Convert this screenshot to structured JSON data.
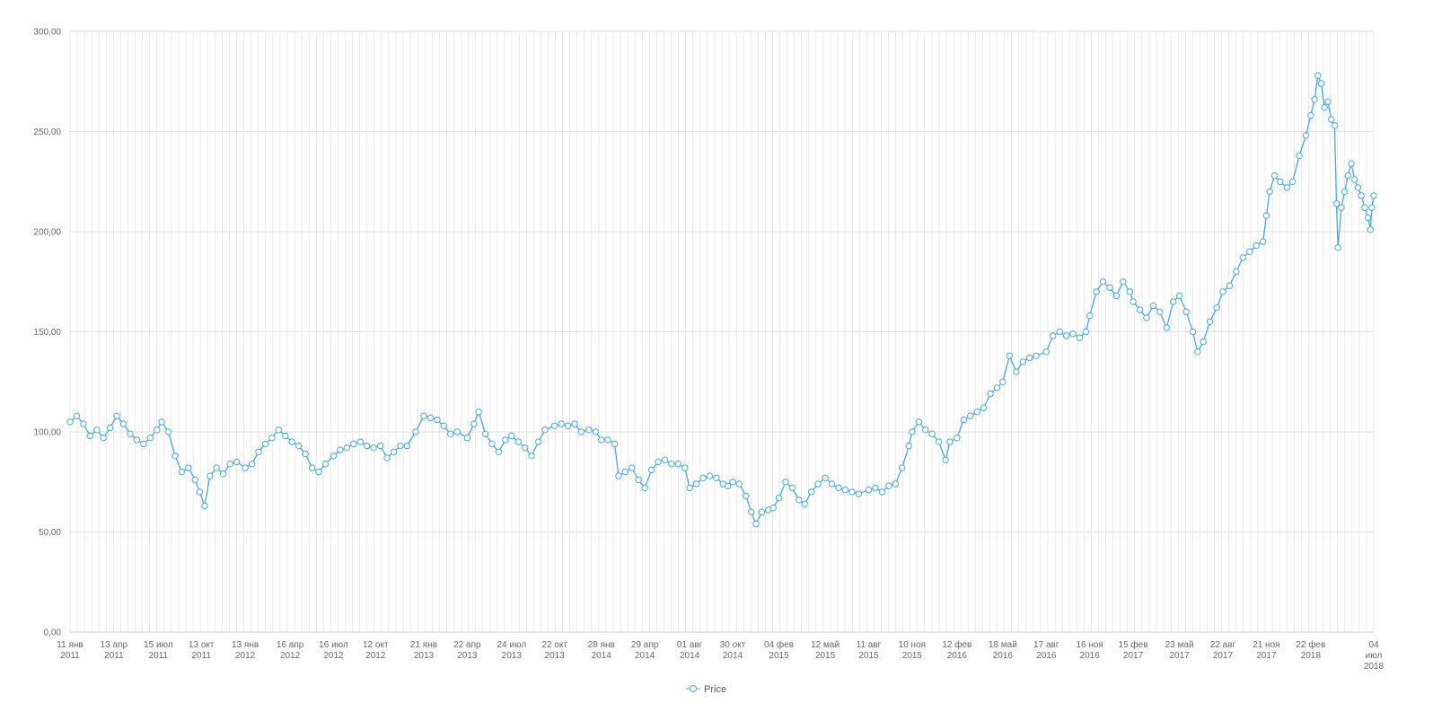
{
  "chart_data": {
    "type": "line",
    "title": "",
    "xlabel": "",
    "ylabel": "",
    "ylim": [
      0,
      300
    ],
    "xlim": [
      "2011-01-11",
      "2018-07-04"
    ],
    "grid": true,
    "marker": "hollow-circle",
    "legend_position": "bottom-center",
    "colors": {
      "series": "#4da6d6",
      "grid": "#dddddd",
      "axis_text": "#666666"
    },
    "y_ticks": [
      "0,00",
      "50,00",
      "100,00",
      "150,00",
      "200,00",
      "250,00",
      "300,00"
    ],
    "x_ticks": [
      {
        "date": "2011-01-11",
        "label": [
          "11 янв",
          "2011"
        ]
      },
      {
        "date": "2011-04-13",
        "label": [
          "13 апр",
          "2011"
        ]
      },
      {
        "date": "2011-07-15",
        "label": [
          "15 июл",
          "2011"
        ]
      },
      {
        "date": "2011-10-13",
        "label": [
          "13 окт",
          "2011"
        ]
      },
      {
        "date": "2012-01-13",
        "label": [
          "13 янв",
          "2012"
        ]
      },
      {
        "date": "2012-04-16",
        "label": [
          "16 апр",
          "2012"
        ]
      },
      {
        "date": "2012-07-16",
        "label": [
          "16 июл",
          "2012"
        ]
      },
      {
        "date": "2012-10-12",
        "label": [
          "12 окт",
          "2012"
        ]
      },
      {
        "date": "2013-01-21",
        "label": [
          "21 янв",
          "2013"
        ]
      },
      {
        "date": "2013-04-22",
        "label": [
          "22 апр",
          "2013"
        ]
      },
      {
        "date": "2013-07-24",
        "label": [
          "24 июл",
          "2013"
        ]
      },
      {
        "date": "2013-10-22",
        "label": [
          "22 окт",
          "2013"
        ]
      },
      {
        "date": "2014-01-28",
        "label": [
          "28 янв",
          "2014"
        ]
      },
      {
        "date": "2014-04-29",
        "label": [
          "29 апр",
          "2014"
        ]
      },
      {
        "date": "2014-08-01",
        "label": [
          "01 авг",
          "2014"
        ]
      },
      {
        "date": "2014-10-30",
        "label": [
          "30 окт",
          "2014"
        ]
      },
      {
        "date": "2015-02-04",
        "label": [
          "04 фев",
          "2015"
        ]
      },
      {
        "date": "2015-05-12",
        "label": [
          "12 май",
          "2015"
        ]
      },
      {
        "date": "2015-08-11",
        "label": [
          "11 авг",
          "2015"
        ]
      },
      {
        "date": "2015-11-10",
        "label": [
          "10 ноя",
          "2015"
        ]
      },
      {
        "date": "2016-02-12",
        "label": [
          "12 фев",
          "2016"
        ]
      },
      {
        "date": "2016-05-18",
        "label": [
          "18 май",
          "2016"
        ]
      },
      {
        "date": "2016-08-17",
        "label": [
          "17 авг",
          "2016"
        ]
      },
      {
        "date": "2016-11-16",
        "label": [
          "16 ноя",
          "2016"
        ]
      },
      {
        "date": "2017-02-15",
        "label": [
          "15 фев",
          "2017"
        ]
      },
      {
        "date": "2017-05-23",
        "label": [
          "23 май",
          "2017"
        ]
      },
      {
        "date": "2017-08-22",
        "label": [
          "22 авг",
          "2017"
        ]
      },
      {
        "date": "2017-11-21",
        "label": [
          "21 ноя",
          "2017"
        ]
      },
      {
        "date": "2018-02-22",
        "label": [
          "22 фев",
          "2018"
        ]
      },
      {
        "date": "2018-07-04",
        "label": [
          "04",
          "июл",
          "2018"
        ]
      }
    ],
    "series": [
      {
        "name": "Price",
        "points": [
          [
            "2011-01-11",
            105
          ],
          [
            "2011-01-25",
            108
          ],
          [
            "2011-02-08",
            104
          ],
          [
            "2011-02-22",
            98
          ],
          [
            "2011-03-08",
            101
          ],
          [
            "2011-03-22",
            97
          ],
          [
            "2011-04-05",
            102
          ],
          [
            "2011-04-19",
            108
          ],
          [
            "2011-05-03",
            104
          ],
          [
            "2011-05-17",
            99
          ],
          [
            "2011-05-31",
            96
          ],
          [
            "2011-06-14",
            94
          ],
          [
            "2011-06-28",
            97
          ],
          [
            "2011-07-12",
            101
          ],
          [
            "2011-07-22",
            105
          ],
          [
            "2011-08-05",
            100
          ],
          [
            "2011-08-19",
            88
          ],
          [
            "2011-09-02",
            80
          ],
          [
            "2011-09-16",
            82
          ],
          [
            "2011-09-30",
            76
          ],
          [
            "2011-10-10",
            70
          ],
          [
            "2011-10-20",
            63
          ],
          [
            "2011-10-31",
            78
          ],
          [
            "2011-11-14",
            82
          ],
          [
            "2011-11-28",
            79
          ],
          [
            "2011-12-12",
            84
          ],
          [
            "2011-12-26",
            85
          ],
          [
            "2012-01-13",
            82
          ],
          [
            "2012-01-27",
            84
          ],
          [
            "2012-02-10",
            90
          ],
          [
            "2012-02-24",
            94
          ],
          [
            "2012-03-09",
            97
          ],
          [
            "2012-03-23",
            101
          ],
          [
            "2012-04-06",
            98
          ],
          [
            "2012-04-20",
            95
          ],
          [
            "2012-05-04",
            93
          ],
          [
            "2012-05-18",
            89
          ],
          [
            "2012-06-01",
            82
          ],
          [
            "2012-06-15",
            80
          ],
          [
            "2012-06-29",
            84
          ],
          [
            "2012-07-16",
            88
          ],
          [
            "2012-07-30",
            91
          ],
          [
            "2012-08-13",
            92
          ],
          [
            "2012-08-27",
            94
          ],
          [
            "2012-09-10",
            95
          ],
          [
            "2012-09-24",
            93
          ],
          [
            "2012-10-08",
            92
          ],
          [
            "2012-10-22",
            93
          ],
          [
            "2012-11-05",
            87
          ],
          [
            "2012-11-19",
            90
          ],
          [
            "2012-12-03",
            93
          ],
          [
            "2012-12-17",
            93
          ],
          [
            "2013-01-04",
            100
          ],
          [
            "2013-01-21",
            108
          ],
          [
            "2013-02-04",
            107
          ],
          [
            "2013-02-18",
            106
          ],
          [
            "2013-03-04",
            103
          ],
          [
            "2013-03-18",
            99
          ],
          [
            "2013-04-01",
            100
          ],
          [
            "2013-04-22",
            97
          ],
          [
            "2013-05-06",
            104
          ],
          [
            "2013-05-16",
            110
          ],
          [
            "2013-05-30",
            99
          ],
          [
            "2013-06-13",
            94
          ],
          [
            "2013-06-27",
            90
          ],
          [
            "2013-07-11",
            96
          ],
          [
            "2013-07-24",
            98
          ],
          [
            "2013-08-07",
            95
          ],
          [
            "2013-08-21",
            92
          ],
          [
            "2013-09-04",
            88
          ],
          [
            "2013-09-18",
            95
          ],
          [
            "2013-10-02",
            101
          ],
          [
            "2013-10-22",
            103
          ],
          [
            "2013-11-05",
            104
          ],
          [
            "2013-11-19",
            103
          ],
          [
            "2013-12-03",
            104
          ],
          [
            "2013-12-17",
            100
          ],
          [
            "2014-01-02",
            101
          ],
          [
            "2014-01-16",
            100
          ],
          [
            "2014-01-28",
            96
          ],
          [
            "2014-02-11",
            96
          ],
          [
            "2014-02-25",
            94
          ],
          [
            "2014-03-05",
            78
          ],
          [
            "2014-03-19",
            80
          ],
          [
            "2014-04-02",
            82
          ],
          [
            "2014-04-16",
            76
          ],
          [
            "2014-04-29",
            72
          ],
          [
            "2014-05-13",
            81
          ],
          [
            "2014-05-27",
            85
          ],
          [
            "2014-06-10",
            86
          ],
          [
            "2014-06-24",
            84
          ],
          [
            "2014-07-08",
            84
          ],
          [
            "2014-07-22",
            82
          ],
          [
            "2014-08-01",
            72
          ],
          [
            "2014-08-15",
            74
          ],
          [
            "2014-08-29",
            77
          ],
          [
            "2014-09-12",
            78
          ],
          [
            "2014-09-26",
            77
          ],
          [
            "2014-10-10",
            74
          ],
          [
            "2014-10-20",
            73
          ],
          [
            "2014-10-30",
            75
          ],
          [
            "2014-11-13",
            74
          ],
          [
            "2014-11-27",
            68
          ],
          [
            "2014-12-08",
            60
          ],
          [
            "2014-12-18",
            54
          ],
          [
            "2014-12-30",
            60
          ],
          [
            "2015-01-13",
            61
          ],
          [
            "2015-01-23",
            62
          ],
          [
            "2015-02-04",
            67
          ],
          [
            "2015-02-18",
            75
          ],
          [
            "2015-03-04",
            72
          ],
          [
            "2015-03-18",
            66
          ],
          [
            "2015-03-30",
            64
          ],
          [
            "2015-04-13",
            70
          ],
          [
            "2015-04-27",
            74
          ],
          [
            "2015-05-12",
            77
          ],
          [
            "2015-05-26",
            74
          ],
          [
            "2015-06-09",
            72
          ],
          [
            "2015-06-23",
            71
          ],
          [
            "2015-07-07",
            70
          ],
          [
            "2015-07-21",
            69
          ],
          [
            "2015-08-11",
            71
          ],
          [
            "2015-08-25",
            72
          ],
          [
            "2015-09-08",
            70
          ],
          [
            "2015-09-22",
            73
          ],
          [
            "2015-10-06",
            74
          ],
          [
            "2015-10-20",
            82
          ],
          [
            "2015-11-03",
            93
          ],
          [
            "2015-11-10",
            100
          ],
          [
            "2015-11-24",
            105
          ],
          [
            "2015-12-08",
            101
          ],
          [
            "2015-12-22",
            99
          ],
          [
            "2016-01-05",
            95
          ],
          [
            "2016-01-19",
            86
          ],
          [
            "2016-01-28",
            95
          ],
          [
            "2016-02-12",
            97
          ],
          [
            "2016-02-26",
            106
          ],
          [
            "2016-03-11",
            108
          ],
          [
            "2016-03-25",
            110
          ],
          [
            "2016-04-08",
            112
          ],
          [
            "2016-04-22",
            119
          ],
          [
            "2016-05-06",
            122
          ],
          [
            "2016-05-18",
            125
          ],
          [
            "2016-06-01",
            138
          ],
          [
            "2016-06-15",
            130
          ],
          [
            "2016-06-29",
            135
          ],
          [
            "2016-07-13",
            137
          ],
          [
            "2016-07-27",
            138
          ],
          [
            "2016-08-17",
            140
          ],
          [
            "2016-08-31",
            148
          ],
          [
            "2016-09-14",
            150
          ],
          [
            "2016-09-28",
            148
          ],
          [
            "2016-10-12",
            149
          ],
          [
            "2016-10-26",
            147
          ],
          [
            "2016-11-08",
            150
          ],
          [
            "2016-11-16",
            158
          ],
          [
            "2016-11-30",
            170
          ],
          [
            "2016-12-14",
            175
          ],
          [
            "2016-12-28",
            172
          ],
          [
            "2017-01-11",
            168
          ],
          [
            "2017-01-25",
            175
          ],
          [
            "2017-02-08",
            170
          ],
          [
            "2017-02-15",
            165
          ],
          [
            "2017-03-01",
            161
          ],
          [
            "2017-03-15",
            157
          ],
          [
            "2017-03-29",
            163
          ],
          [
            "2017-04-12",
            160
          ],
          [
            "2017-04-26",
            152
          ],
          [
            "2017-05-10",
            165
          ],
          [
            "2017-05-23",
            168
          ],
          [
            "2017-06-06",
            160
          ],
          [
            "2017-06-20",
            150
          ],
          [
            "2017-06-30",
            140
          ],
          [
            "2017-07-12",
            145
          ],
          [
            "2017-07-26",
            155
          ],
          [
            "2017-08-09",
            162
          ],
          [
            "2017-08-22",
            170
          ],
          [
            "2017-09-05",
            173
          ],
          [
            "2017-09-19",
            180
          ],
          [
            "2017-10-03",
            187
          ],
          [
            "2017-10-17",
            190
          ],
          [
            "2017-10-31",
            193
          ],
          [
            "2017-11-14",
            195
          ],
          [
            "2017-11-21",
            208
          ],
          [
            "2017-11-28",
            220
          ],
          [
            "2017-12-08",
            228
          ],
          [
            "2017-12-20",
            225
          ],
          [
            "2018-01-03",
            222
          ],
          [
            "2018-01-15",
            225
          ],
          [
            "2018-01-29",
            238
          ],
          [
            "2018-02-12",
            248
          ],
          [
            "2018-02-22",
            258
          ],
          [
            "2018-03-02",
            266
          ],
          [
            "2018-03-09",
            278
          ],
          [
            "2018-03-16",
            274
          ],
          [
            "2018-03-23",
            262
          ],
          [
            "2018-03-30",
            265
          ],
          [
            "2018-04-06",
            256
          ],
          [
            "2018-04-13",
            253
          ],
          [
            "2018-04-17",
            214
          ],
          [
            "2018-04-20",
            192
          ],
          [
            "2018-04-27",
            212
          ],
          [
            "2018-05-04",
            220
          ],
          [
            "2018-05-11",
            228
          ],
          [
            "2018-05-18",
            234
          ],
          [
            "2018-05-25",
            226
          ],
          [
            "2018-06-01",
            222
          ],
          [
            "2018-06-08",
            218
          ],
          [
            "2018-06-15",
            212
          ],
          [
            "2018-06-22",
            207
          ],
          [
            "2018-06-27",
            201
          ],
          [
            "2018-06-30",
            212
          ],
          [
            "2018-07-04",
            218
          ]
        ]
      }
    ]
  }
}
